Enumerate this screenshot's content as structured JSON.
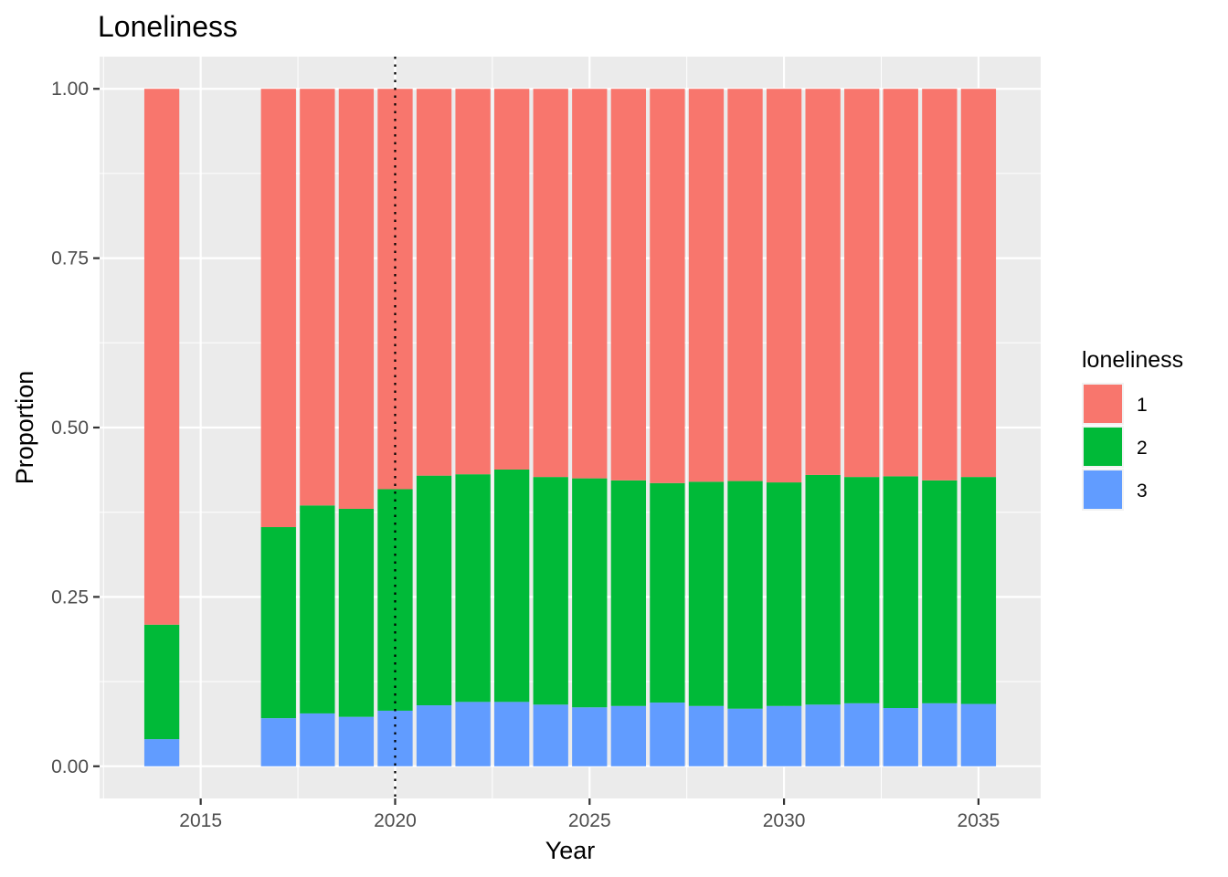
{
  "chart_data": {
    "type": "bar",
    "stacked": true,
    "title": "Loneliness",
    "xlabel": "Year",
    "ylabel": "Proportion",
    "xlim": [
      2012.4,
      2036.6
    ],
    "ylim": [
      -0.0475,
      1.0475
    ],
    "x_ticks": [
      "2015",
      "2020",
      "2025",
      "2030",
      "2035"
    ],
    "x_tick_values": [
      2015,
      2020,
      2025,
      2030,
      2035
    ],
    "y_ticks": [
      "0.00",
      "0.25",
      "0.50",
      "0.75",
      "1.00"
    ],
    "y_tick_values": [
      0,
      0.25,
      0.5,
      0.75,
      1.0
    ],
    "grid": true,
    "reference_line": {
      "x": 2020,
      "style": "dotted"
    },
    "legend": {
      "title": "loneliness",
      "position": "right"
    },
    "x": [
      2014,
      2017,
      2018,
      2019,
      2020,
      2021,
      2022,
      2023,
      2024,
      2025,
      2026,
      2027,
      2028,
      2029,
      2030,
      2031,
      2032,
      2033,
      2034,
      2035
    ],
    "series": [
      {
        "name": "1",
        "color": "#F8766D",
        "values": [
          0.791,
          0.647,
          0.615,
          0.62,
          0.591,
          0.571,
          0.569,
          0.562,
          0.573,
          0.575,
          0.578,
          0.582,
          0.58,
          0.579,
          0.581,
          0.57,
          0.573,
          0.572,
          0.578,
          0.573
        ]
      },
      {
        "name": "2",
        "color": "#00BA38",
        "values": [
          0.169,
          0.282,
          0.307,
          0.307,
          0.327,
          0.339,
          0.336,
          0.343,
          0.336,
          0.338,
          0.333,
          0.324,
          0.331,
          0.336,
          0.33,
          0.339,
          0.334,
          0.342,
          0.329,
          0.335
        ]
      },
      {
        "name": "3",
        "color": "#619CFF",
        "values": [
          0.04,
          0.071,
          0.078,
          0.073,
          0.082,
          0.09,
          0.095,
          0.095,
          0.091,
          0.087,
          0.089,
          0.094,
          0.089,
          0.085,
          0.089,
          0.091,
          0.093,
          0.086,
          0.093,
          0.092
        ]
      }
    ],
    "stack_order_bottom_to_top": [
      "3",
      "2",
      "1"
    ]
  }
}
